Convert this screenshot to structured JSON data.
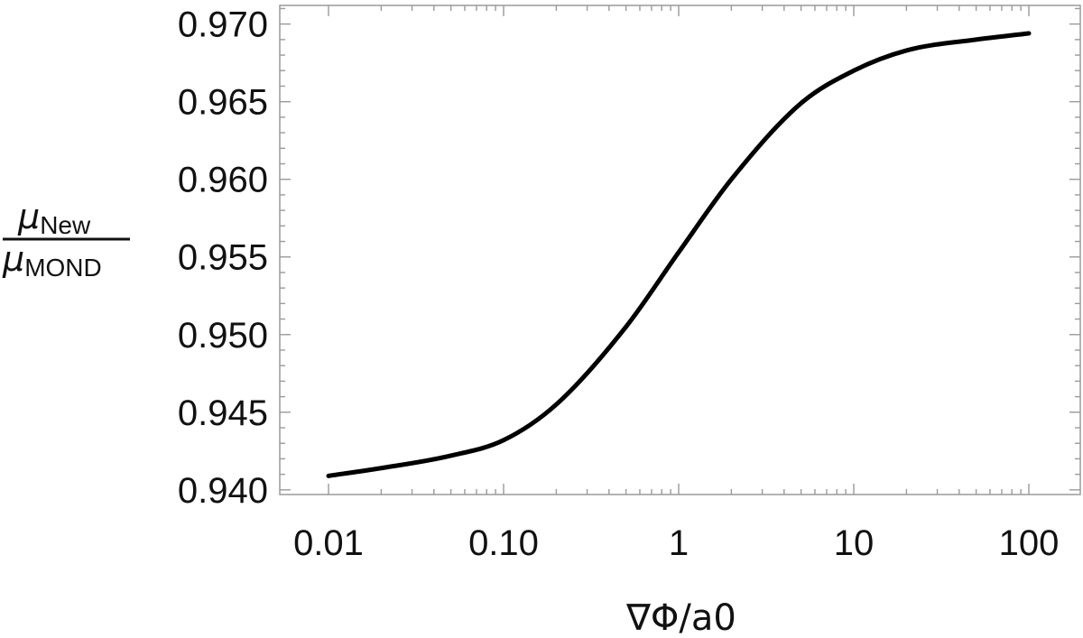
{
  "chart_data": {
    "type": "line",
    "title": "",
    "xlabel": "∇Φ/a0",
    "ylabel": {
      "numerator": {
        "symbol": "μ",
        "subscript": "New"
      },
      "denominator": {
        "symbol": "μ",
        "subscript": "MOND"
      }
    },
    "xscale": "log",
    "xlim": [
      0.01,
      100
    ],
    "ylim": [
      0.9397,
      0.9712
    ],
    "grid": false,
    "legend": "none",
    "line_color": "#000000",
    "x_ticks": [
      {
        "value": 0.01,
        "label": "0.01"
      },
      {
        "value": 0.1,
        "label": "0.10"
      },
      {
        "value": 1,
        "label": "1"
      },
      {
        "value": 10,
        "label": "10"
      },
      {
        "value": 100,
        "label": "100"
      }
    ],
    "y_ticks": [
      {
        "value": 0.94,
        "label": "0.940"
      },
      {
        "value": 0.945,
        "label": "0.945"
      },
      {
        "value": 0.95,
        "label": "0.950"
      },
      {
        "value": 0.955,
        "label": "0.955"
      },
      {
        "value": 0.96,
        "label": "0.960"
      },
      {
        "value": 0.965,
        "label": "0.965"
      },
      {
        "value": 0.97,
        "label": "0.970"
      }
    ],
    "series": [
      {
        "x": [
          0.01,
          0.02,
          0.05,
          0.1,
          0.2,
          0.5,
          1,
          2,
          5,
          10,
          20,
          50,
          100
        ],
        "y": [
          0.9409,
          0.9414,
          0.9422,
          0.9432,
          0.9455,
          0.9505,
          0.9553,
          0.96,
          0.9649,
          0.967,
          0.9683,
          0.969,
          0.9694
        ]
      }
    ]
  }
}
